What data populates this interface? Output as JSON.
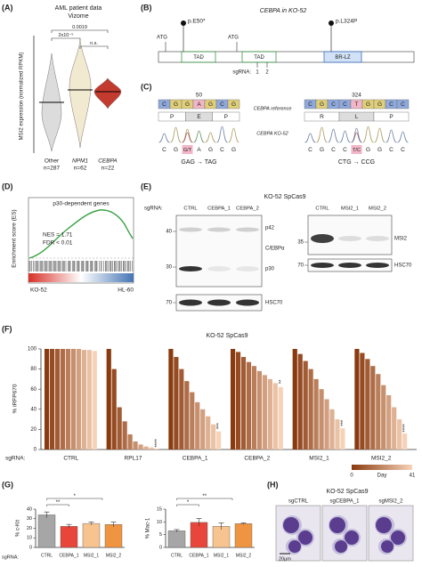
{
  "figure": {
    "a": {
      "label": "(A)",
      "title": "AML patient data",
      "subtitle": "Vizome",
      "y_label": "MSI2 expression (normalized RPKM)",
      "groups": [
        {
          "name": "Other",
          "n": "n=287"
        },
        {
          "name": "NPM1",
          "n": "n=62"
        },
        {
          "name": "CEBPA",
          "n": "n=22"
        }
      ],
      "comparisons": [
        "0.0019",
        "2x10⁻⁵",
        "n.s."
      ]
    },
    "b": {
      "label": "(B)",
      "title": "CEBPA in KO-52",
      "atg": [
        "ATG",
        "ATG"
      ],
      "mutations": [
        "p.E50*",
        "p.L324P"
      ],
      "domains": [
        "TAD",
        "TAD",
        "BR-LZ"
      ],
      "sgrna_label": "sgRNA:",
      "sgrnas": [
        1,
        2
      ]
    },
    "c": {
      "label": "(C)",
      "reference": "CEBPA reference",
      "sample": "CEBPA KO-52",
      "left": {
        "position": 50,
        "bases": [
          "C",
          "G",
          "G",
          "A",
          "G",
          "C",
          "G"
        ],
        "aminos": [
          "P",
          "E",
          "P"
        ],
        "read": [
          "C",
          "G",
          "G/T",
          "A",
          "G",
          "C",
          "G"
        ],
        "change": "GAG → TAG"
      },
      "right": {
        "position": 324,
        "bases": [
          "C",
          "G",
          "C",
          "C",
          "T",
          "G",
          "G",
          "C",
          "C"
        ],
        "aminos": [
          "R",
          "L",
          "P"
        ],
        "read": [
          "C",
          "G",
          "C",
          "C",
          "T/C",
          "G",
          "G",
          "C",
          "C"
        ],
        "change": "CTG → CCG"
      }
    },
    "d": {
      "label": "(D)",
      "title": "p30-dependent genes",
      "stats": [
        "NES = 1.71",
        "FDR < 0.01"
      ],
      "y_label": "Enrichment score (ES)",
      "x_labels": [
        "KO-52",
        "HL-60"
      ]
    },
    "e": {
      "label": "(E)",
      "title": "KO-52 SpCas9",
      "sgrna_label": "sgRNA:",
      "left_lanes": [
        "CTRL",
        "CEBPA_1",
        "CEBPA_2"
      ],
      "right_lanes": [
        "CTRL",
        "MSI2_1",
        "MSI2_2"
      ],
      "left_markers": [
        40,
        30,
        70
      ],
      "right_markers": [
        35,
        70
      ],
      "left_bands": [
        "p42",
        "C/EBPα",
        "p30",
        "HSC70"
      ],
      "right_bands": [
        "MSI2",
        "HSC70"
      ]
    },
    "f": {
      "label": "(F)",
      "title": "KO-52 SpCas9",
      "y_label": "% iRFP670",
      "ylim": [
        0,
        100
      ],
      "yticks": [
        0,
        20,
        40,
        60,
        80,
        100
      ],
      "sgrna_label": "sgRNA:",
      "colors": [
        "#8a3a0f",
        "#f6d3b8"
      ],
      "groups": [
        {
          "name": "CTRL",
          "values": [
            100,
            100,
            100,
            100,
            100,
            100,
            100,
            99,
            99,
            98
          ]
        },
        {
          "name": "RPL17",
          "values": [
            100,
            80,
            42,
            28,
            15,
            8,
            5,
            3,
            2,
            1
          ],
          "stars": "****"
        },
        {
          "name": "CEBPA_1",
          "values": [
            100,
            92,
            80,
            68,
            57,
            47,
            40,
            33,
            25,
            18
          ],
          "stars": "***"
        },
        {
          "name": "CEBPA_2",
          "values": [
            100,
            97,
            92,
            87,
            83,
            78,
            74,
            70,
            66,
            62
          ],
          "stars": "**"
        },
        {
          "name": "MSI2_1",
          "values": [
            100,
            95,
            88,
            80,
            70,
            60,
            50,
            40,
            30,
            21
          ],
          "stars": "***"
        },
        {
          "name": "MSI2_2",
          "values": [
            100,
            96,
            90,
            83,
            75,
            64,
            54,
            42,
            30,
            16
          ],
          "stars": "****"
        }
      ],
      "legend": {
        "title": "Day",
        "ticks": [
          0,
          41
        ]
      }
    },
    "g": {
      "label": "(G)",
      "sgrna_label": "sgRNA:",
      "categories": [
        "CTRL",
        "CEBPA_1",
        "MSI2_1",
        "MSI2_2"
      ],
      "colors": [
        "#a6a6a6",
        "#e8463a",
        "#f7c38f",
        "#ef9440"
      ],
      "charts": [
        {
          "y_label": "% c-Kit",
          "ylim": [
            0,
            40
          ],
          "yticks": [
            0,
            10,
            20,
            30,
            40
          ],
          "values": [
            34,
            22,
            25,
            24
          ],
          "errors": [
            3,
            2,
            1.5,
            2.5
          ],
          "significance": [
            "**",
            "*"
          ]
        },
        {
          "y_label": "% Mac-1",
          "ylim": [
            0,
            15
          ],
          "yticks": [
            0,
            5,
            10,
            15
          ],
          "values": [
            6.5,
            9.8,
            8.3,
            9.3
          ],
          "errors": [
            0.5,
            1.5,
            1.3,
            0.3
          ],
          "significance": [
            "*",
            "**"
          ]
        }
      ]
    },
    "h": {
      "label": "(H)",
      "title": "KO-52 SpCas9",
      "images": [
        "sgCTRL",
        "sgCEBPA_1",
        "sgMSI2_2"
      ],
      "scale": "20μm"
    }
  }
}
